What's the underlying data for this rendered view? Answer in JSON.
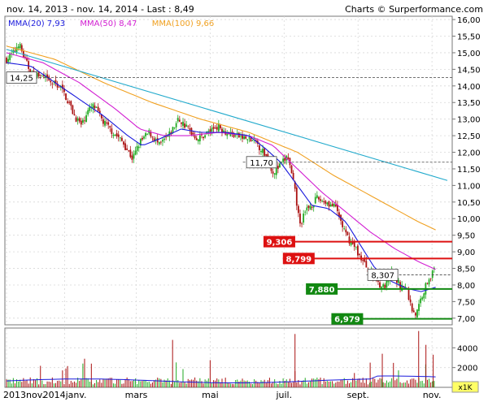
{
  "header": {
    "range_text": "nov. 14, 2013 - nov. 14, 2014 - Last : 8,49",
    "credit": "Charts © Surperformance.com"
  },
  "legend": [
    {
      "label": "MMA(20)",
      "value": "7,93",
      "color": "#1a1adc"
    },
    {
      "label": "MMA(50)",
      "value": "8,47",
      "color": "#d21ed2"
    },
    {
      "label": "MMA(100)",
      "value": "9,66",
      "color": "#f0a020"
    }
  ],
  "colors": {
    "up_candle": "#22aa22",
    "down_candle": "#aa1111",
    "trendline": "#22aacc",
    "resistance": "#dd1111",
    "support": "#118811",
    "volume_line": "#1a1adc"
  },
  "chart_data": {
    "type": "candlestick",
    "y_axis": {
      "min": 6.8,
      "max": 16.1,
      "ticks": [
        "16,00",
        "15,50",
        "15,00",
        "14,50",
        "14,00",
        "13,50",
        "13,00",
        "12,50",
        "12,00",
        "11,50",
        "11,00",
        "10,50",
        "10,00",
        "9,50",
        "9,00",
        "8,50",
        "8,00",
        "7,50",
        "7,00"
      ],
      "tick_values": [
        16,
        15.5,
        15,
        14.5,
        14,
        13.5,
        13,
        12.5,
        12,
        11.5,
        11,
        10.5,
        10,
        9.5,
        9,
        8.5,
        8,
        7.5,
        7
      ]
    },
    "volume_axis": {
      "min": 0,
      "max": 6000,
      "ticks": [
        "4000",
        "2000"
      ],
      "tick_values": [
        4000,
        2000
      ],
      "unit": "x1K"
    },
    "x_labels": [
      "2013nov.",
      "2014janv.",
      "mars",
      "mai",
      "juil.",
      "sept.",
      "nov."
    ],
    "x_label_days": [
      0,
      48,
      107,
      168,
      229,
      290,
      351
    ],
    "total_days": 365,
    "price_anchors": [
      [
        0,
        14.8
      ],
      [
        6,
        15.0
      ],
      [
        10,
        15.3
      ],
      [
        14,
        14.9
      ],
      [
        20,
        14.4
      ],
      [
        28,
        14.3
      ],
      [
        36,
        14.1
      ],
      [
        44,
        14.0
      ],
      [
        50,
        13.6
      ],
      [
        56,
        13.1
      ],
      [
        62,
        12.8
      ],
      [
        66,
        13.2
      ],
      [
        72,
        13.4
      ],
      [
        80,
        12.9
      ],
      [
        88,
        12.6
      ],
      [
        96,
        12.3
      ],
      [
        104,
        11.8
      ],
      [
        110,
        12.3
      ],
      [
        118,
        12.6
      ],
      [
        126,
        12.2
      ],
      [
        134,
        12.5
      ],
      [
        142,
        13.0
      ],
      [
        150,
        12.7
      ],
      [
        158,
        12.4
      ],
      [
        166,
        12.6
      ],
      [
        174,
        12.8
      ],
      [
        182,
        12.6
      ],
      [
        190,
        12.5
      ],
      [
        198,
        12.4
      ],
      [
        206,
        12.3
      ],
      [
        214,
        11.9
      ],
      [
        220,
        11.4
      ],
      [
        226,
        11.6
      ],
      [
        232,
        11.9
      ],
      [
        238,
        10.8
      ],
      [
        242,
        9.8
      ],
      [
        248,
        10.3
      ],
      [
        256,
        10.6
      ],
      [
        264,
        10.5
      ],
      [
        272,
        10.3
      ],
      [
        280,
        9.5
      ],
      [
        288,
        9.1
      ],
      [
        294,
        8.7
      ],
      [
        300,
        8.4
      ],
      [
        306,
        8.1
      ],
      [
        312,
        7.9
      ],
      [
        318,
        8.4
      ],
      [
        324,
        8.0
      ],
      [
        330,
        7.9
      ],
      [
        334,
        7.3
      ],
      [
        338,
        7.1
      ],
      [
        342,
        7.6
      ],
      [
        348,
        8.2
      ],
      [
        354,
        8.49
      ]
    ],
    "sma20_anchors": [
      [
        0,
        14.7
      ],
      [
        20,
        14.6
      ],
      [
        40,
        14.1
      ],
      [
        60,
        13.6
      ],
      [
        80,
        13.1
      ],
      [
        100,
        12.5
      ],
      [
        112,
        12.2
      ],
      [
        126,
        12.4
      ],
      [
        144,
        12.7
      ],
      [
        160,
        12.6
      ],
      [
        180,
        12.6
      ],
      [
        200,
        12.5
      ],
      [
        214,
        12.1
      ],
      [
        226,
        11.7
      ],
      [
        240,
        11.0
      ],
      [
        252,
        10.4
      ],
      [
        266,
        10.3
      ],
      [
        280,
        9.9
      ],
      [
        292,
        9.2
      ],
      [
        304,
        8.5
      ],
      [
        318,
        8.1
      ],
      [
        330,
        7.9
      ],
      [
        342,
        7.8
      ],
      [
        354,
        7.93
      ]
    ],
    "sma50_anchors": [
      [
        0,
        15.0
      ],
      [
        30,
        14.7
      ],
      [
        60,
        14.1
      ],
      [
        90,
        13.3
      ],
      [
        110,
        12.7
      ],
      [
        130,
        12.5
      ],
      [
        150,
        12.5
      ],
      [
        175,
        12.6
      ],
      [
        200,
        12.5
      ],
      [
        220,
        12.2
      ],
      [
        240,
        11.5
      ],
      [
        260,
        10.8
      ],
      [
        280,
        10.2
      ],
      [
        300,
        9.6
      ],
      [
        320,
        9.1
      ],
      [
        340,
        8.7
      ],
      [
        354,
        8.47
      ]
    ],
    "sma100_anchors": [
      [
        0,
        15.2
      ],
      [
        40,
        14.8
      ],
      [
        80,
        14.1
      ],
      [
        120,
        13.5
      ],
      [
        160,
        13.0
      ],
      [
        200,
        12.6
      ],
      [
        240,
        12.0
      ],
      [
        270,
        11.3
      ],
      [
        300,
        10.7
      ],
      [
        320,
        10.3
      ],
      [
        340,
        9.9
      ],
      [
        354,
        9.66
      ]
    ],
    "trendline": {
      "from": [
        0,
        15.1
      ],
      "to": [
        365,
        11.15
      ]
    },
    "levels": [
      {
        "label": "14,25",
        "value": 14.25,
        "kind": "dashed",
        "from_day": 0,
        "to_day": 365,
        "label_day": 0
      },
      {
        "label": "11,70",
        "value": 11.7,
        "kind": "dashed",
        "from_day": 195,
        "to_day": 365,
        "label_day": 198
      },
      {
        "label": "8,307",
        "value": 8.307,
        "kind": "dashed",
        "from_day": 297,
        "to_day": 365,
        "label_day": 298
      },
      {
        "label": "9,306",
        "value": 9.306,
        "kind": "resistance",
        "from_day": 212,
        "to_day": 365,
        "label_day": 212
      },
      {
        "label": "8,799",
        "value": 8.799,
        "kind": "resistance",
        "from_day": 228,
        "to_day": 365,
        "label_day": 228
      },
      {
        "label": "7,880",
        "value": 7.88,
        "kind": "support",
        "from_day": 247,
        "to_day": 365,
        "label_day": 247
      },
      {
        "label": "6,979",
        "value": 6.979,
        "kind": "support",
        "from_day": 268,
        "to_day": 365,
        "label_day": 268
      }
    ]
  }
}
